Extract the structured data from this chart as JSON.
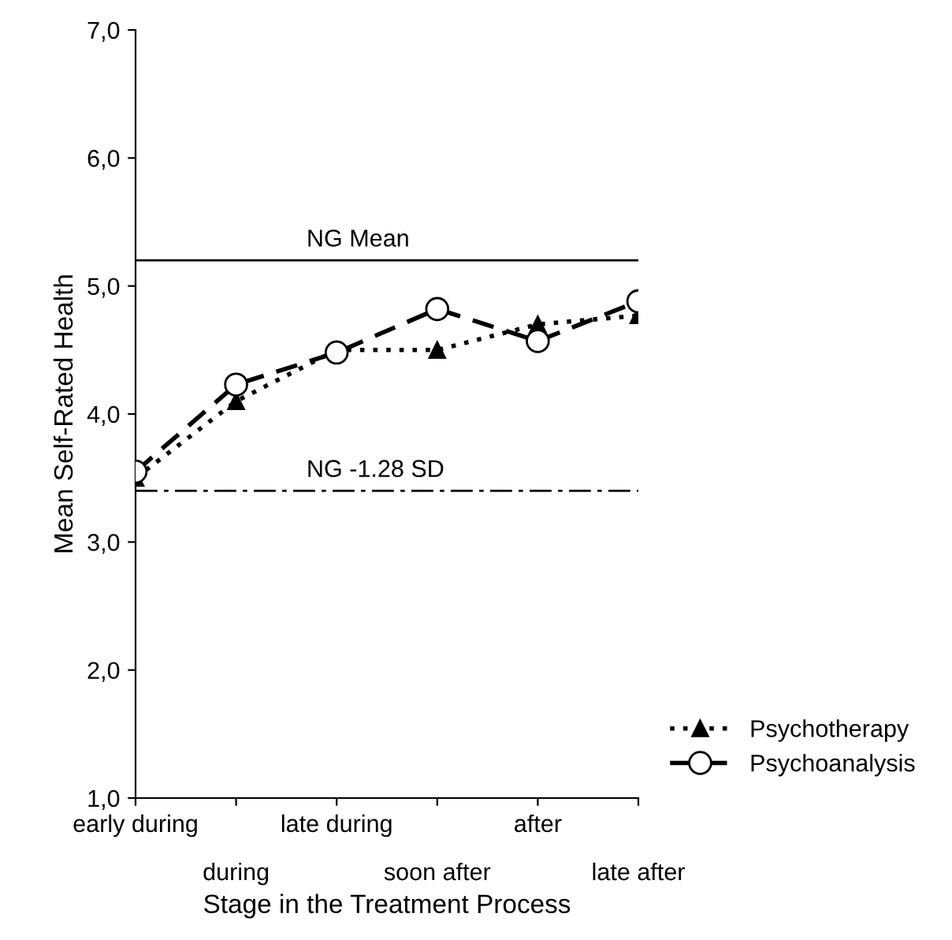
{
  "chart_data": {
    "type": "line",
    "xlabel": "Stage in the Treatment Process",
    "ylabel": "Mean Self-Rated Health",
    "categories": [
      "early during",
      "during",
      "late during",
      "soon after",
      "after",
      "late after"
    ],
    "series": [
      {
        "name": "Psychotherapy",
        "color": "#000000",
        "values": [
          3.5,
          4.1,
          4.5,
          4.5,
          4.7,
          4.77
        ],
        "marker": "triangle",
        "line_style": "dotted"
      },
      {
        "name": "Psychoanalysis",
        "color": "#000000",
        "values": [
          3.55,
          4.23,
          4.48,
          4.82,
          4.57,
          4.88
        ],
        "marker": "circle",
        "line_style": "dashed"
      }
    ],
    "ylim": [
      1,
      7
    ],
    "yticks": [
      {
        "value": 1,
        "label": "1,0"
      },
      {
        "value": 2,
        "label": "2,0"
      },
      {
        "value": 3,
        "label": "3,0"
      },
      {
        "value": 4,
        "label": "4,0"
      },
      {
        "value": 5,
        "label": "5,0"
      },
      {
        "value": 6,
        "label": "6,0"
      },
      {
        "value": 7,
        "label": "7,0"
      }
    ],
    "ref_lines": [
      {
        "axis": "y",
        "value": 5.2,
        "label": "NG Mean",
        "line_style": "solid",
        "color": "#000000"
      },
      {
        "axis": "y",
        "value": 3.4,
        "label": "NG -1.28 SD",
        "line_style": "dashdot",
        "color": "#000000"
      }
    ],
    "grid": false,
    "legend": "bottom right"
  }
}
